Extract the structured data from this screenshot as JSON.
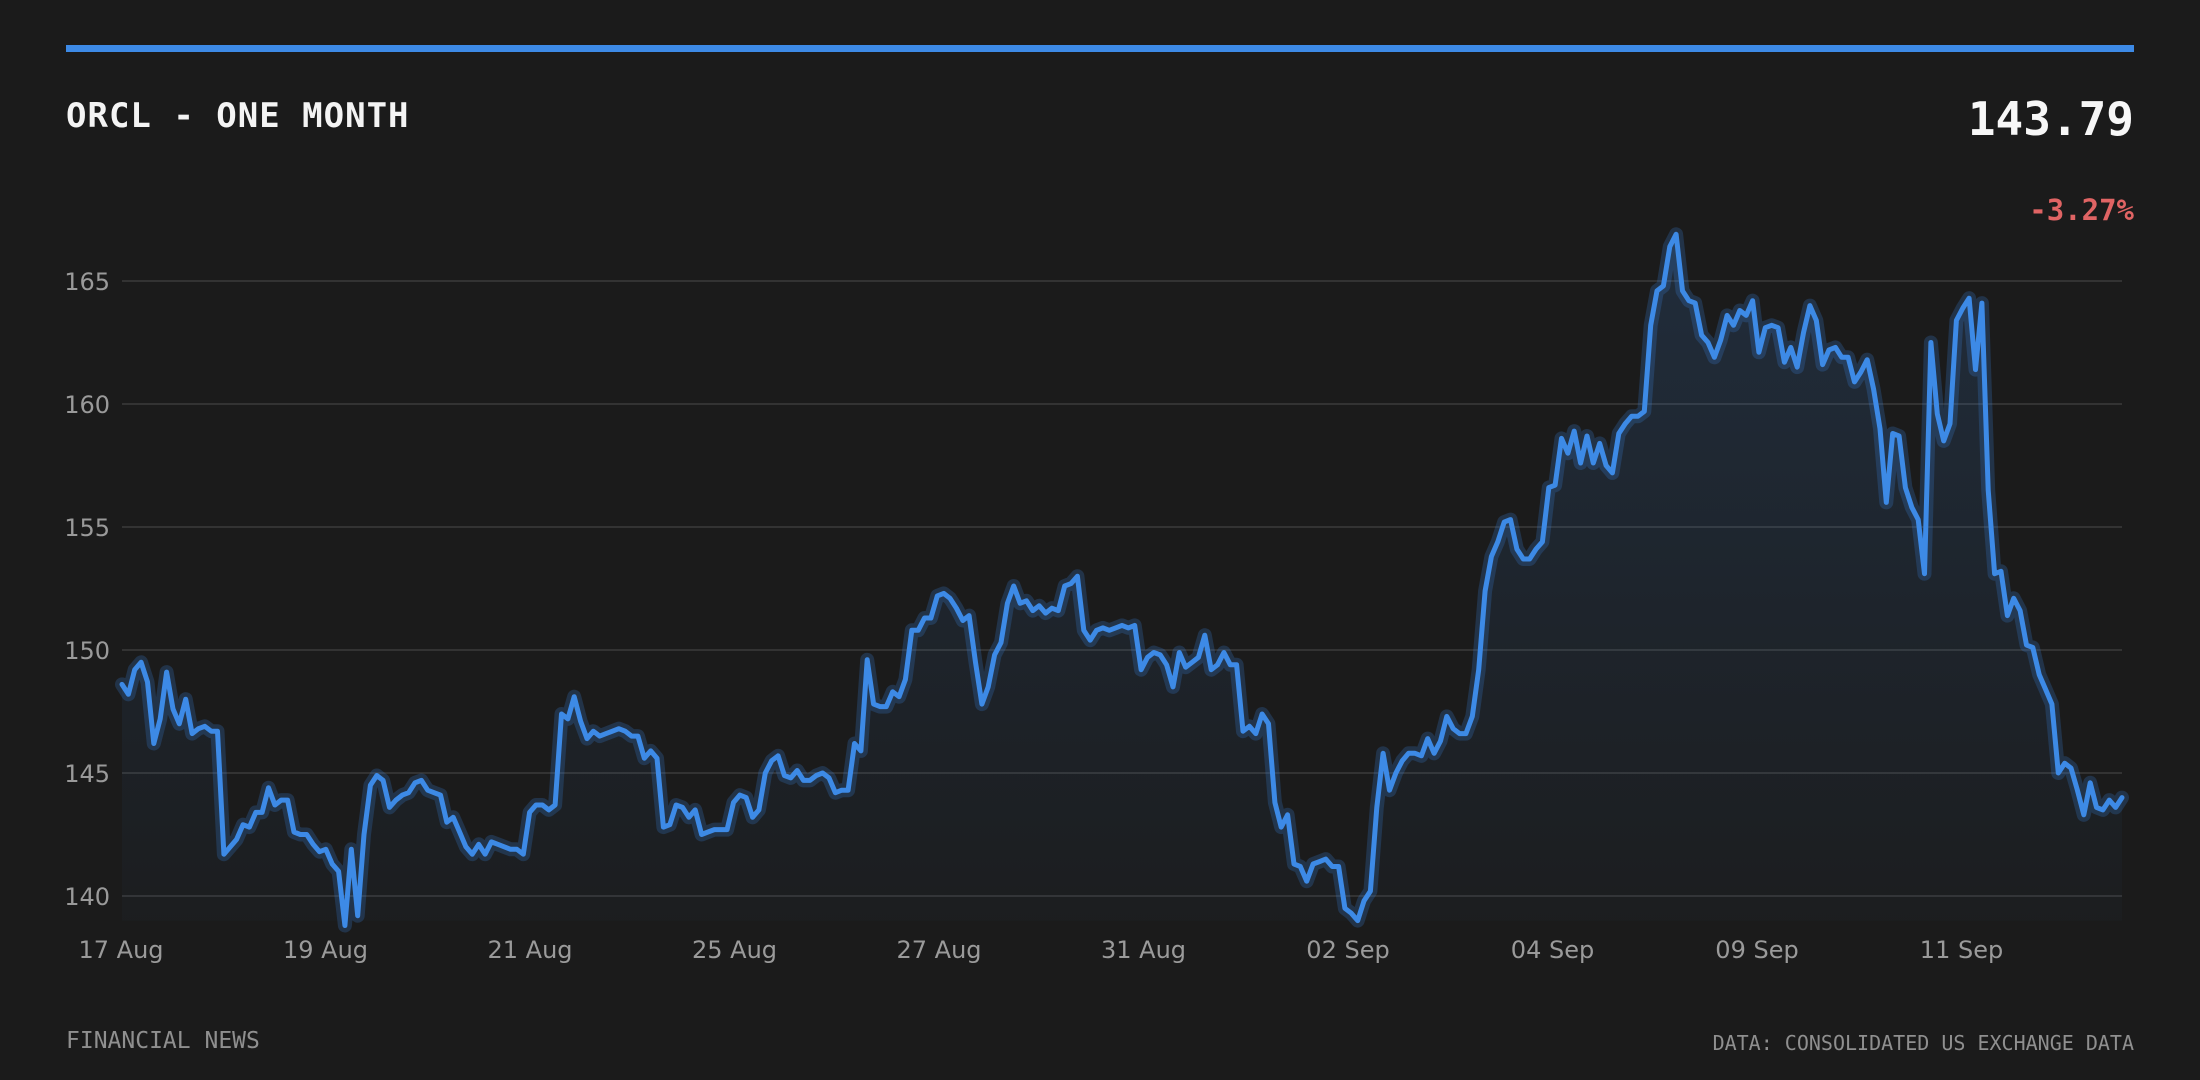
{
  "header": {
    "title": "ORCL - ONE MONTH",
    "price": "143.79",
    "change": "-3.27%"
  },
  "footer": {
    "source_left": "FINANCIAL NEWS",
    "source_right": "DATA: CONSOLIDATED US EXCHANGE DATA"
  },
  "colors": {
    "background": "#1b1b1b",
    "accent": "#3d8ae6",
    "negative": "#e06464",
    "grid": "#333333",
    "text_muted": "#9a9a9a"
  },
  "chart_data": {
    "type": "area",
    "title": "ORCL - ONE MONTH",
    "xlabel": "",
    "ylabel": "",
    "ylim": [
      139,
      167
    ],
    "grid": true,
    "yticks": [
      140,
      145,
      150,
      155,
      160,
      165
    ],
    "x_ticks": [
      "17 Aug",
      "19 Aug",
      "21 Aug",
      "25 Aug",
      "27 Aug",
      "31 Aug",
      "02 Sep",
      "04 Sep",
      "09 Sep",
      "11 Sep"
    ],
    "series": [
      {
        "values": [
          148.6,
          148.2,
          149.2,
          149.5,
          148.7,
          146.2,
          147.2,
          149.1,
          147.6,
          147.0,
          148.0,
          146.6,
          146.8,
          146.9,
          146.7,
          146.7,
          141.7,
          142.0,
          142.3,
          142.9,
          142.8,
          143.4,
          143.4,
          144.4,
          143.7,
          143.9,
          143.9,
          142.6,
          142.5,
          142.5,
          142.1,
          141.8,
          141.9,
          141.3,
          141.0,
          138.8,
          141.9,
          139.2,
          142.5,
          144.5,
          144.9,
          144.7,
          143.6,
          143.9,
          144.1,
          144.2,
          144.6,
          144.7,
          144.3,
          144.2,
          144.1,
          143.0,
          143.2,
          142.6,
          142.0,
          141.7,
          142.1,
          141.7,
          142.2,
          142.1,
          142.0,
          141.9,
          141.9,
          141.7,
          143.4,
          143.7,
          143.7,
          143.5,
          143.7,
          147.4,
          147.2,
          148.1,
          147.1,
          146.4,
          146.7,
          146.5,
          146.6,
          146.7,
          146.8,
          146.7,
          146.5,
          146.5,
          145.6,
          145.9,
          145.6,
          142.8,
          142.9,
          143.7,
          143.6,
          143.2,
          143.5,
          142.5,
          142.6,
          142.7,
          142.7,
          142.7,
          143.8,
          144.1,
          144.0,
          143.2,
          143.5,
          145.0,
          145.5,
          145.7,
          144.9,
          144.8,
          145.1,
          144.7,
          144.7,
          144.9,
          145.0,
          144.8,
          144.2,
          144.3,
          144.3,
          146.2,
          145.9,
          149.6,
          147.8,
          147.7,
          147.7,
          148.3,
          148.1,
          148.8,
          150.8,
          150.8,
          151.3,
          151.3,
          152.2,
          152.3,
          152.1,
          151.7,
          151.2,
          151.4,
          149.5,
          147.8,
          148.5,
          149.8,
          150.3,
          151.9,
          152.6,
          151.9,
          152.0,
          151.6,
          151.8,
          151.5,
          151.7,
          151.6,
          152.6,
          152.7,
          153.0,
          150.8,
          150.4,
          150.8,
          150.9,
          150.8,
          150.9,
          151.0,
          150.9,
          151.0,
          149.2,
          149.7,
          149.9,
          149.8,
          149.4,
          148.5,
          149.9,
          149.3,
          149.5,
          149.7,
          150.6,
          149.2,
          149.4,
          149.9,
          149.4,
          149.4,
          146.7,
          146.9,
          146.6,
          147.4,
          147.0,
          143.8,
          142.8,
          143.3,
          141.3,
          141.2,
          140.6,
          141.3,
          141.4,
          141.5,
          141.2,
          141.2,
          139.5,
          139.3,
          139.0,
          139.8,
          140.2,
          143.6,
          145.8,
          144.3,
          145.0,
          145.5,
          145.8,
          145.8,
          145.7,
          146.4,
          145.8,
          146.3,
          147.3,
          146.8,
          146.6,
          146.6,
          147.3,
          149.2,
          152.4,
          153.8,
          154.4,
          155.2,
          155.3,
          154.1,
          153.7,
          153.7,
          154.1,
          154.4,
          156.6,
          156.7,
          158.6,
          158.0,
          158.9,
          157.6,
          158.7,
          157.6,
          158.4,
          157.5,
          157.2,
          158.8,
          159.2,
          159.5,
          159.5,
          159.7,
          163.2,
          164.6,
          164.8,
          166.4,
          166.9,
          164.6,
          164.2,
          164.1,
          162.8,
          162.5,
          161.9,
          162.6,
          163.6,
          163.2,
          163.8,
          163.6,
          164.2,
          162.1,
          163.1,
          163.2,
          163.1,
          161.7,
          162.3,
          161.5,
          162.9,
          164.0,
          163.4,
          161.6,
          162.2,
          162.3,
          161.9,
          161.9,
          160.9,
          161.3,
          161.8,
          160.6,
          159.0,
          156.0,
          158.8,
          158.7,
          156.6,
          155.8,
          155.3,
          153.1,
          162.5,
          159.6,
          158.5,
          159.2,
          163.4,
          163.9,
          164.3,
          161.4,
          164.1,
          156.5,
          153.1,
          153.2,
          151.4,
          152.1,
          151.6,
          150.2,
          150.1,
          149.0,
          148.4,
          147.8,
          145.0,
          145.4,
          145.2,
          144.3,
          143.3,
          144.6,
          143.6,
          143.5,
          143.9,
          143.6,
          144.0
        ]
      }
    ]
  }
}
